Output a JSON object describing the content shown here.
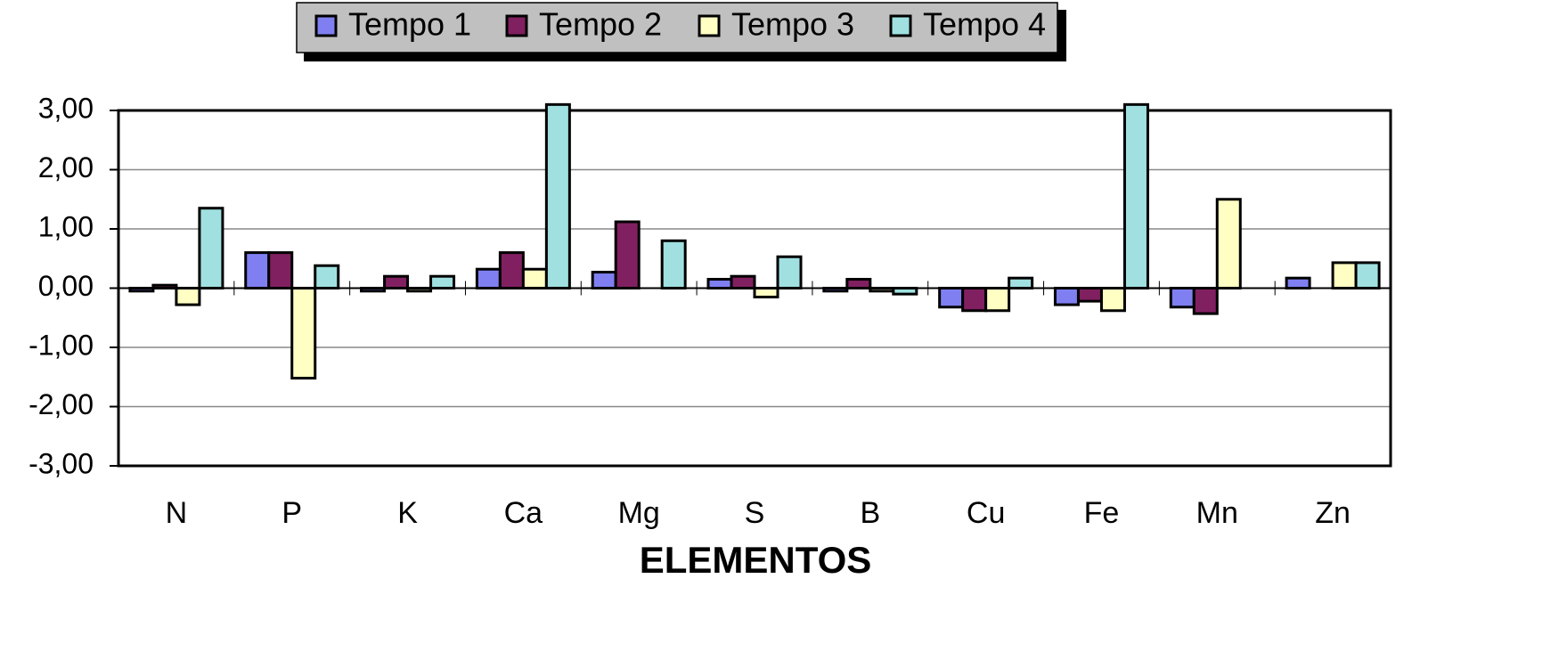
{
  "chart_data": {
    "type": "bar",
    "x_label": "ELEMENTOS",
    "categories": [
      "N",
      "P",
      "K",
      "Ca",
      "Mg",
      "S",
      "B",
      "Cu",
      "Fe",
      "Mn",
      "Zn"
    ],
    "series": [
      {
        "name": "Tempo 1",
        "color": "#7f7ff2",
        "values": [
          -0.05,
          0.6,
          -0.05,
          0.32,
          0.27,
          0.15,
          -0.05,
          -0.32,
          -0.28,
          -0.32,
          0.17
        ]
      },
      {
        "name": "Tempo 2",
        "color": "#802060",
        "values": [
          0.05,
          0.6,
          0.2,
          0.6,
          1.12,
          0.2,
          0.15,
          -0.38,
          -0.22,
          -0.43,
          0
        ]
      },
      {
        "name": "Tempo 3",
        "color": "#ffffc4",
        "values": [
          -0.28,
          -1.52,
          -0.05,
          0.32,
          0,
          -0.15,
          -0.05,
          -0.38,
          -0.38,
          1.5,
          0.43
        ]
      },
      {
        "name": "Tempo 4",
        "color": "#a0e0e0",
        "values": [
          1.35,
          0.38,
          0.2,
          3.1,
          0.8,
          0.53,
          -0.1,
          0.17,
          3.1,
          0,
          0.43
        ]
      }
    ],
    "ylim": [
      -3,
      3
    ],
    "yticks": [
      {
        "value": -3,
        "label": "-3,00"
      },
      {
        "value": -2,
        "label": "-2,00"
      },
      {
        "value": -1,
        "label": "-1,00"
      },
      {
        "value": 0,
        "label": "0,00"
      },
      {
        "value": 1,
        "label": "1,00"
      },
      {
        "value": 2,
        "label": "2,00"
      },
      {
        "value": 3,
        "label": "3,00"
      }
    ],
    "grid": true,
    "legend": "top"
  }
}
